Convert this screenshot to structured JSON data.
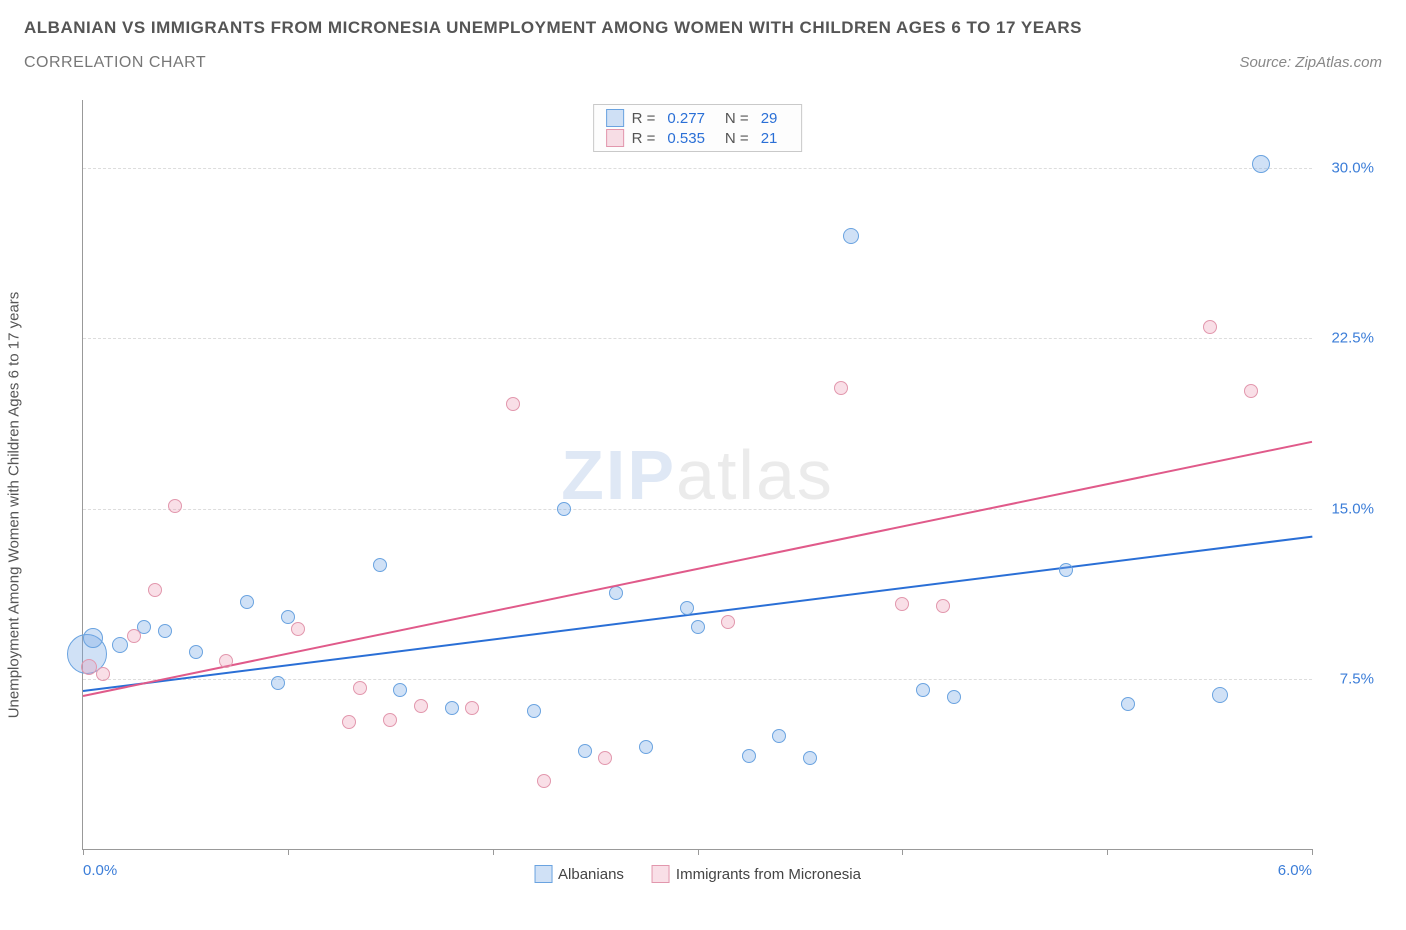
{
  "title_line1": "ALBANIAN VS IMMIGRANTS FROM MICRONESIA UNEMPLOYMENT AMONG WOMEN WITH CHILDREN AGES 6 TO 17 YEARS",
  "title_line2": "CORRELATION CHART",
  "source_label": "Source: ZipAtlas.com",
  "y_axis_label": "Unemployment Among Women with Children Ages 6 to 17 years",
  "watermark_a": "ZIP",
  "watermark_b": "atlas",
  "chart": {
    "type": "scatter",
    "background_color": "#ffffff",
    "grid_color": "#dddddd",
    "axis_color": "#999999",
    "xlim": [
      0.0,
      6.0
    ],
    "ylim": [
      0.0,
      33.0
    ],
    "x_ticks": [
      0.0,
      1.0,
      2.0,
      3.0,
      4.0,
      5.0,
      6.0
    ],
    "x_tick_labels": {
      "0": "0.0%",
      "6": "6.0%"
    },
    "y_gridlines": [
      7.5,
      15.0,
      22.5,
      30.0
    ],
    "y_tick_labels": [
      "7.5%",
      "15.0%",
      "22.5%",
      "30.0%"
    ],
    "series": [
      {
        "key": "albanians",
        "label": "Albanians",
        "fill": "rgba(120,170,230,0.35)",
        "stroke": "#6aa3e0",
        "trend_color": "#2a6fd6",
        "R": "0.277",
        "N": "29",
        "trend": {
          "x1": 0.0,
          "y1": 7.0,
          "x2": 6.0,
          "y2": 13.8
        },
        "points": [
          {
            "x": 0.02,
            "y": 8.6,
            "r": 20
          },
          {
            "x": 0.05,
            "y": 9.3,
            "r": 10
          },
          {
            "x": 0.18,
            "y": 9.0,
            "r": 8
          },
          {
            "x": 0.3,
            "y": 9.8,
            "r": 7
          },
          {
            "x": 0.4,
            "y": 9.6,
            "r": 7
          },
          {
            "x": 0.55,
            "y": 8.7,
            "r": 7
          },
          {
            "x": 0.8,
            "y": 10.9,
            "r": 7
          },
          {
            "x": 0.95,
            "y": 7.3,
            "r": 7
          },
          {
            "x": 1.0,
            "y": 10.2,
            "r": 7
          },
          {
            "x": 1.45,
            "y": 12.5,
            "r": 7
          },
          {
            "x": 1.55,
            "y": 7.0,
            "r": 7
          },
          {
            "x": 1.8,
            "y": 6.2,
            "r": 7
          },
          {
            "x": 2.2,
            "y": 6.1,
            "r": 7
          },
          {
            "x": 2.35,
            "y": 15.0,
            "r": 7
          },
          {
            "x": 2.45,
            "y": 4.3,
            "r": 7
          },
          {
            "x": 2.6,
            "y": 11.3,
            "r": 7
          },
          {
            "x": 2.75,
            "y": 4.5,
            "r": 7
          },
          {
            "x": 2.95,
            "y": 10.6,
            "r": 7
          },
          {
            "x": 3.0,
            "y": 9.8,
            "r": 7
          },
          {
            "x": 3.25,
            "y": 4.1,
            "r": 7
          },
          {
            "x": 3.4,
            "y": 5.0,
            "r": 7
          },
          {
            "x": 3.55,
            "y": 4.0,
            "r": 7
          },
          {
            "x": 3.75,
            "y": 27.0,
            "r": 8
          },
          {
            "x": 4.1,
            "y": 7.0,
            "r": 7
          },
          {
            "x": 4.25,
            "y": 6.7,
            "r": 7
          },
          {
            "x": 4.8,
            "y": 12.3,
            "r": 7
          },
          {
            "x": 5.1,
            "y": 6.4,
            "r": 7
          },
          {
            "x": 5.55,
            "y": 6.8,
            "r": 8
          },
          {
            "x": 5.75,
            "y": 30.2,
            "r": 9
          }
        ]
      },
      {
        "key": "micronesia",
        "label": "Immigrants from Micronesia",
        "fill": "rgba(235,150,175,0.30)",
        "stroke": "#e297ad",
        "trend_color": "#e05a8a",
        "R": "0.535",
        "N": "21",
        "trend": {
          "x1": 0.0,
          "y1": 6.8,
          "x2": 6.0,
          "y2": 18.0
        },
        "points": [
          {
            "x": 0.03,
            "y": 8.0,
            "r": 8
          },
          {
            "x": 0.1,
            "y": 7.7,
            "r": 7
          },
          {
            "x": 0.25,
            "y": 9.4,
            "r": 7
          },
          {
            "x": 0.35,
            "y": 11.4,
            "r": 7
          },
          {
            "x": 0.45,
            "y": 15.1,
            "r": 7
          },
          {
            "x": 0.7,
            "y": 8.3,
            "r": 7
          },
          {
            "x": 1.05,
            "y": 9.7,
            "r": 7
          },
          {
            "x": 1.3,
            "y": 5.6,
            "r": 7
          },
          {
            "x": 1.35,
            "y": 7.1,
            "r": 7
          },
          {
            "x": 1.5,
            "y": 5.7,
            "r": 7
          },
          {
            "x": 1.65,
            "y": 6.3,
            "r": 7
          },
          {
            "x": 1.9,
            "y": 6.2,
            "r": 7
          },
          {
            "x": 2.1,
            "y": 19.6,
            "r": 7
          },
          {
            "x": 2.25,
            "y": 3.0,
            "r": 7
          },
          {
            "x": 2.55,
            "y": 4.0,
            "r": 7
          },
          {
            "x": 3.15,
            "y": 10.0,
            "r": 7
          },
          {
            "x": 3.7,
            "y": 20.3,
            "r": 7
          },
          {
            "x": 4.0,
            "y": 10.8,
            "r": 7
          },
          {
            "x": 4.2,
            "y": 10.7,
            "r": 7
          },
          {
            "x": 5.5,
            "y": 23.0,
            "r": 7
          },
          {
            "x": 5.7,
            "y": 20.2,
            "r": 7
          }
        ]
      }
    ]
  },
  "legend_stat_labels": {
    "R": "R =",
    "N": "N ="
  }
}
